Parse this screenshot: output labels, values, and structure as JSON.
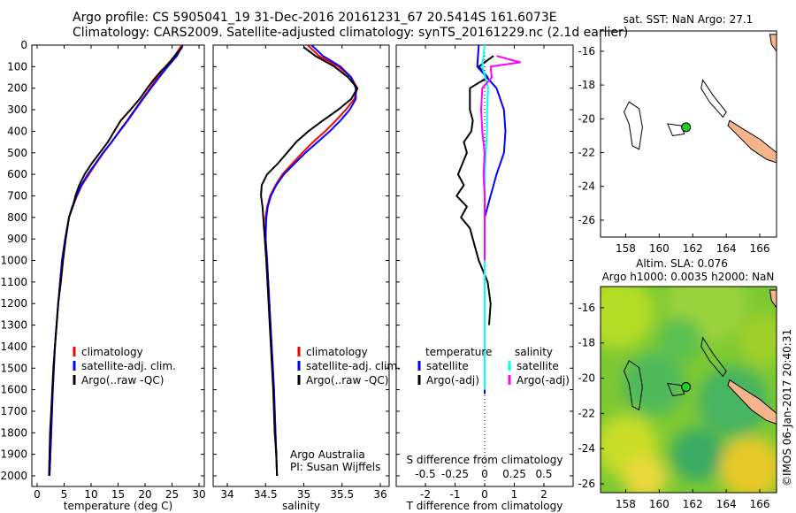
{
  "header": {
    "line1": "Argo profile: CS 5905041_19 31-Dec-2016 20161231_67 20.5414S 161.6073E",
    "line2": "Climatology: CARS2009. Satellite-adjusted climatology: synTS_20161229.nc (2.1d earlier)"
  },
  "side_note": "©IMOS 06-Jan-2017 20:40:31",
  "colors": {
    "climatology": "#ff0000",
    "satellite": "#0000ff",
    "argo": "#000000",
    "sal_satellite": "#00ffff",
    "sal_argo": "#ff00ff",
    "land": "#f5b48c",
    "marker": "#22cc22"
  },
  "chart_data": [
    {
      "type": "line",
      "xlabel": "temperature (deg C)",
      "ylabel": "",
      "xlim": [
        -3,
        32
      ],
      "ylim": [
        2080,
        0
      ],
      "xticks": [
        "0",
        "5",
        "10",
        "15",
        "20",
        "25",
        "30"
      ],
      "yticks": [
        "0",
        "100",
        "200",
        "300",
        "400",
        "500",
        "600",
        "700",
        "800",
        "900",
        "1000",
        "1100",
        "1200",
        "1300",
        "1400",
        "1500",
        "1600",
        "1700",
        "1800",
        "1900",
        "2000"
      ],
      "legend": [
        "climatology",
        "satellite-adj. clim.",
        "Argo(..raw -QC)"
      ],
      "series": [
        {
          "name": "climatology",
          "depth": [
            0,
            50,
            100,
            150,
            200,
            250,
            300,
            350,
            400,
            450,
            500,
            550,
            600,
            650,
            700,
            750,
            800,
            900,
            1000,
            1200,
            1400,
            1600,
            1800,
            2000
          ],
          "values": [
            26.8,
            25.5,
            23.8,
            22.3,
            20.9,
            19.5,
            18.1,
            16.7,
            15.2,
            13.8,
            12.3,
            10.9,
            9.6,
            8.3,
            7.4,
            6.6,
            5.9,
            5.2,
            4.6,
            3.9,
            3.3,
            2.9,
            2.6,
            2.3
          ]
        },
        {
          "name": "satellite-adj. clim.",
          "depth": [
            0,
            50,
            100,
            150,
            200,
            250,
            300,
            350,
            400,
            450,
            500,
            550,
            600,
            650,
            700,
            750,
            800,
            900,
            1000,
            1200,
            1400,
            1600,
            1800,
            2000
          ],
          "values": [
            27.0,
            25.9,
            24.2,
            22.6,
            21.1,
            19.6,
            18.2,
            16.8,
            15.3,
            13.8,
            12.2,
            10.8,
            9.4,
            8.2,
            7.3,
            6.5,
            5.9,
            5.2,
            4.6,
            3.9,
            3.3,
            2.9,
            2.6,
            2.3
          ]
        },
        {
          "name": "Argo(..raw -QC)",
          "depth": [
            10,
            40,
            80,
            120,
            160,
            200,
            250,
            300,
            350,
            400,
            450,
            500,
            550,
            600,
            650,
            700,
            750,
            800,
            850,
            900,
            1000,
            1100,
            1200,
            1300,
            1400,
            1500,
            1600,
            1700,
            1800,
            1900,
            2000
          ],
          "values": [
            26.9,
            25.8,
            24.6,
            23.0,
            21.6,
            20.4,
            19.0,
            17.3,
            15.5,
            14.3,
            13.1,
            11.6,
            10.1,
            8.8,
            7.8,
            7.1,
            6.6,
            5.9,
            5.6,
            5.3,
            4.8,
            4.4,
            3.9,
            3.6,
            3.3,
            3.0,
            2.8,
            2.6,
            2.4,
            2.3,
            2.2
          ]
        }
      ]
    },
    {
      "type": "line",
      "xlabel": "salinity",
      "ylabel": "",
      "xlim": [
        33.75,
        36.1
      ],
      "ylim": [
        2080,
        0
      ],
      "xticks": [
        "34",
        "34.5",
        "35",
        "35.5",
        "36"
      ],
      "legend": [
        "climatology",
        "satellite-adj. clim.",
        "Argo(..raw -QC)"
      ],
      "annotation": [
        "Argo Australia",
        "PI: Susan Wijffels"
      ],
      "series": [
        {
          "name": "climatology",
          "depth": [
            0,
            50,
            100,
            150,
            200,
            250,
            300,
            350,
            400,
            450,
            500,
            550,
            600,
            650,
            700,
            750,
            800,
            900,
            1000,
            1200,
            1400,
            1600,
            1800,
            2000
          ],
          "values": [
            35.05,
            35.2,
            35.45,
            35.62,
            35.7,
            35.66,
            35.55,
            35.42,
            35.28,
            35.12,
            34.98,
            34.85,
            34.72,
            34.63,
            34.56,
            34.52,
            34.5,
            34.5,
            34.52,
            34.55,
            34.58,
            34.61,
            34.63,
            34.65
          ]
        },
        {
          "name": "satellite-adj. clim.",
          "depth": [
            0,
            50,
            100,
            150,
            200,
            250,
            300,
            350,
            400,
            450,
            500,
            550,
            600,
            650,
            700,
            750,
            800,
            900,
            1000,
            1200,
            1400,
            1600,
            1800,
            2000
          ],
          "values": [
            35.1,
            35.25,
            35.48,
            35.62,
            35.68,
            35.68,
            35.6,
            35.48,
            35.34,
            35.18,
            35.02,
            34.88,
            34.74,
            34.64,
            34.57,
            34.53,
            34.51,
            34.5,
            34.52,
            34.55,
            34.58,
            34.61,
            34.63,
            34.65
          ]
        },
        {
          "name": "Argo(..raw -QC)",
          "depth": [
            10,
            50,
            100,
            150,
            200,
            250,
            300,
            350,
            400,
            450,
            500,
            550,
            600,
            650,
            700,
            750,
            800,
            850,
            900,
            1000,
            1200,
            1400,
            1600,
            1800,
            1900,
            2000
          ],
          "values": [
            35.0,
            35.15,
            35.4,
            35.58,
            35.7,
            35.62,
            35.45,
            35.25,
            35.06,
            34.9,
            34.78,
            34.66,
            34.52,
            34.45,
            34.44,
            34.46,
            34.47,
            34.48,
            34.49,
            34.51,
            34.54,
            34.57,
            34.6,
            34.62,
            34.64,
            34.65
          ]
        }
      ]
    },
    {
      "type": "line",
      "xlabel": "T difference from climatology",
      "top_label": "S difference from climatology",
      "xlim": [
        -2.4,
        2.4
      ],
      "ylim": [
        2080,
        0
      ],
      "xticks": [
        "-2",
        "-1",
        "0",
        "1",
        "2"
      ],
      "top_ticks": [
        "-0.5",
        "-0.25",
        "0",
        "0.25",
        "0.5"
      ],
      "legend": [
        "temperature",
        "satellite",
        "Argo(-adj)",
        "salinity",
        "satellite",
        "Argo(-adj)"
      ],
      "series": [
        {
          "name": "satellite",
          "depth": [
            0,
            100,
            200,
            300,
            400,
            500,
            600,
            700,
            800,
            900,
            1000,
            1100,
            1200,
            1250,
            1320,
            1620
          ],
          "values": [
            -0.2,
            -0.25,
            0.4,
            0.65,
            0.7,
            0.65,
            0.4,
            0.2,
            0.0,
            0.0,
            0.0,
            0.0,
            0.0,
            0.0,
            0.0,
            0.0
          ]
        },
        {
          "name": "Argo(-adj)",
          "depth": [
            50,
            100,
            150,
            200,
            300,
            350,
            400,
            450,
            500,
            550,
            600,
            650,
            700,
            750,
            800,
            850,
            900,
            1000,
            1100,
            1200,
            1300
          ],
          "values": [
            0.3,
            -0.2,
            0.1,
            -0.5,
            -0.5,
            -0.4,
            -0.45,
            -0.7,
            -0.6,
            -0.75,
            -0.9,
            -0.7,
            -0.95,
            -0.6,
            -0.8,
            -0.5,
            -0.4,
            -0.2,
            0.1,
            0.2,
            0.15
          ]
        },
        {
          "name": "satellite",
          "depth": [
            0,
            100,
            200,
            300,
            400,
            500,
            600,
            700,
            800,
            900,
            1000,
            1200,
            1400,
            1600
          ],
          "values": [
            0.0,
            -0.02,
            0.03,
            0.02,
            0.02,
            0.01,
            0.0,
            0.0,
            0.0,
            0.0,
            0.0,
            0.0,
            0.0,
            0.0
          ]
        },
        {
          "name": "Argo(-adj)",
          "depth": [
            50,
            80,
            100,
            150,
            200,
            300,
            400,
            500,
            600,
            700,
            800,
            900,
            1000
          ],
          "values": [
            0.1,
            0.3,
            0.05,
            0.06,
            -0.02,
            -0.03,
            -0.02,
            0.0,
            -0.01,
            0.0,
            0.0,
            0.0,
            0.0
          ]
        }
      ]
    }
  ],
  "map_top": {
    "title": "sat. SST: NaN Argo: 27.1",
    "xticks": [
      "158",
      "160",
      "162",
      "164",
      "166"
    ],
    "yticks": [
      "-16",
      "-18",
      "-20",
      "-22",
      "-24",
      "-26"
    ],
    "lon": [
      156.5,
      167
    ],
    "lat": [
      -27,
      -14.8
    ],
    "argo_position": {
      "lon": 161.6,
      "lat": -20.5
    }
  },
  "map_bottom": {
    "title1": "Altim. SLA: 0.076",
    "title2": "Argo h1000: 0.0035 h2000: NaN",
    "xticks": [
      "158",
      "160",
      "162",
      "164",
      "166"
    ],
    "yticks": [
      "-16",
      "-18",
      "-20",
      "-22",
      "-24",
      "-26"
    ],
    "lon": [
      156.5,
      167
    ],
    "lat": [
      -26.5,
      -14.8
    ],
    "argo_position": {
      "lon": 161.6,
      "lat": -20.5
    }
  }
}
